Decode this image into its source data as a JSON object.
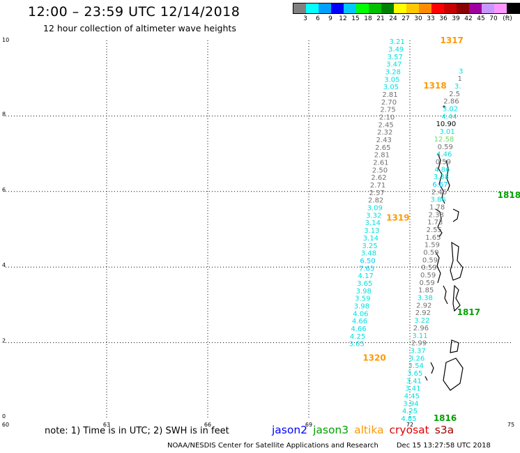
{
  "title": "12:00 – 23:59 UTC 12/14/2018",
  "subtitle": "12 hour collection of altimeter wave heights",
  "legend": {
    "colors": [
      "#808080",
      "#00ffff",
      "#00a0ff",
      "#0000ff",
      "#00c8ff",
      "#00ff00",
      "#00c000",
      "#008000",
      "#ffff00",
      "#ffc800",
      "#ff8c00",
      "#ff0000",
      "#c80000",
      "#8b0000",
      "#a000a0",
      "#c896ff",
      "#ff96ff",
      "#000000"
    ],
    "labels": [
      "3",
      "6",
      "9",
      "12",
      "15",
      "18",
      "21",
      "24",
      "27",
      "30",
      "33",
      "36",
      "39",
      "42",
      "45",
      "70",
      "(ft)"
    ]
  },
  "note": "note: 1) Time is in UTC; 2) SWH is in feet",
  "satellites": [
    {
      "name": "jason2",
      "color": "#0000ff"
    },
    {
      "name": "jason3",
      "color": "#00a000"
    },
    {
      "name": "altika",
      "color": "#ff9900"
    },
    {
      "name": "cryosat",
      "color": "#e00000"
    },
    {
      "name": "s3a",
      "color": "#a00000"
    }
  ],
  "footer": {
    "credit": "NOAA/NESDIS Center for Satellite Applications and Research",
    "timestamp": "Dec 15 13:27:58 UTC 2018"
  },
  "chart_data": {
    "type": "scatter",
    "xlim": [
      60,
      75
    ],
    "ylim": [
      0,
      10
    ],
    "x_ticks": [
      "60",
      "63",
      "66",
      "69",
      "72",
      "75"
    ],
    "y_ticks": [
      "0",
      "2",
      "4",
      "6",
      "8",
      "10"
    ],
    "grid": true,
    "times": [
      {
        "label": "1317",
        "x": 72.9,
        "y": 10.0,
        "color": "#ff9900"
      },
      {
        "label": "1318",
        "x": 72.4,
        "y": 8.8,
        "color": "#ff9900"
      },
      {
        "label": "1319",
        "x": 71.3,
        "y": 5.3,
        "color": "#ff9900"
      },
      {
        "label": "1320",
        "x": 70.6,
        "y": 1.6,
        "color": "#ff9900"
      },
      {
        "label": "1816",
        "x": 72.7,
        "y": 0.0,
        "color": "#00a000"
      },
      {
        "label": "1817",
        "x": 73.4,
        "y": 2.8,
        "color": "#00a000"
      },
      {
        "label": "1818",
        "x": 74.6,
        "y": 5.9,
        "color": "#00a000"
      }
    ],
    "series": [
      {
        "name": "altika",
        "points": [
          {
            "x": 71.85,
            "y": 9.98,
            "v": "3.21",
            "c": "#00e0e0"
          },
          {
            "x": 71.82,
            "y": 9.78,
            "v": "3.49",
            "c": "#00e0e0"
          },
          {
            "x": 71.79,
            "y": 9.58,
            "v": "3.57",
            "c": "#00e0e0"
          },
          {
            "x": 71.76,
            "y": 9.38,
            "v": "3.47",
            "c": "#00e0e0"
          },
          {
            "x": 71.73,
            "y": 9.18,
            "v": "3.28",
            "c": "#00e0e0"
          },
          {
            "x": 71.7,
            "y": 8.98,
            "v": "3.05",
            "c": "#00e0e0"
          },
          {
            "x": 71.67,
            "y": 8.78,
            "v": "3.05",
            "c": "#00e0e0"
          },
          {
            "x": 71.64,
            "y": 8.58,
            "v": "2.81",
            "c": "#707070"
          },
          {
            "x": 71.61,
            "y": 8.38,
            "v": "2.70",
            "c": "#707070"
          },
          {
            "x": 71.58,
            "y": 8.18,
            "v": "2.75",
            "c": "#707070"
          },
          {
            "x": 71.55,
            "y": 7.98,
            "v": "2.10",
            "c": "#707070"
          },
          {
            "x": 71.52,
            "y": 7.78,
            "v": "2.45",
            "c": "#707070"
          },
          {
            "x": 71.49,
            "y": 7.58,
            "v": "2.32",
            "c": "#707070"
          },
          {
            "x": 71.46,
            "y": 7.38,
            "v": "2.43",
            "c": "#707070"
          },
          {
            "x": 71.43,
            "y": 7.18,
            "v": "2.65",
            "c": "#707070"
          },
          {
            "x": 71.4,
            "y": 6.98,
            "v": "2.81",
            "c": "#707070"
          },
          {
            "x": 71.37,
            "y": 6.78,
            "v": "2.61",
            "c": "#707070"
          },
          {
            "x": 71.34,
            "y": 6.58,
            "v": "2.50",
            "c": "#707070"
          },
          {
            "x": 71.31,
            "y": 6.38,
            "v": "2.62",
            "c": "#707070"
          },
          {
            "x": 71.28,
            "y": 6.18,
            "v": "2.71",
            "c": "#707070"
          },
          {
            "x": 71.25,
            "y": 5.98,
            "v": "2.57",
            "c": "#707070"
          },
          {
            "x": 71.22,
            "y": 5.78,
            "v": "2.82",
            "c": "#707070"
          },
          {
            "x": 71.19,
            "y": 5.58,
            "v": "3.09",
            "c": "#00e0e0"
          },
          {
            "x": 71.16,
            "y": 5.38,
            "v": "3.32",
            "c": "#00e0e0"
          },
          {
            "x": 71.13,
            "y": 5.18,
            "v": "3.14",
            "c": "#00e0e0"
          },
          {
            "x": 71.1,
            "y": 4.98,
            "v": "3.13",
            "c": "#00e0e0"
          },
          {
            "x": 71.07,
            "y": 4.78,
            "v": "3.14",
            "c": "#00e0e0"
          },
          {
            "x": 71.04,
            "y": 4.58,
            "v": "3.25",
            "c": "#00e0e0"
          },
          {
            "x": 71.01,
            "y": 4.38,
            "v": "3.48",
            "c": "#00e0e0"
          },
          {
            "x": 70.98,
            "y": 4.18,
            "v": "6.50",
            "c": "#00c8ff"
          },
          {
            "x": 70.95,
            "y": 3.98,
            "v": "7.65",
            "c": "#00c8ff"
          },
          {
            "x": 70.92,
            "y": 3.78,
            "v": "4.17",
            "c": "#00e0e0"
          },
          {
            "x": 70.89,
            "y": 3.58,
            "v": "3.65",
            "c": "#00e0e0"
          },
          {
            "x": 70.86,
            "y": 3.38,
            "v": "3.98",
            "c": "#00e0e0"
          },
          {
            "x": 70.83,
            "y": 3.18,
            "v": "3.59",
            "c": "#00e0e0"
          },
          {
            "x": 70.8,
            "y": 2.98,
            "v": "3.98",
            "c": "#00e0e0"
          },
          {
            "x": 70.77,
            "y": 2.78,
            "v": "4.06",
            "c": "#00e0e0"
          },
          {
            "x": 70.74,
            "y": 2.58,
            "v": "4.66",
            "c": "#00e0e0"
          },
          {
            "x": 70.71,
            "y": 2.38,
            "v": "4.66",
            "c": "#00e0e0"
          },
          {
            "x": 70.68,
            "y": 2.18,
            "v": "4.25",
            "c": "#00e0e0"
          },
          {
            "x": 70.65,
            "y": 1.98,
            "v": "3.65",
            "c": "#00e0e0"
          }
        ]
      },
      {
        "name": "jason3",
        "points": [
          {
            "x": 72.2,
            "y": 0.0,
            "v": "4.85",
            "c": "#00e0e0"
          },
          {
            "x": 72.23,
            "y": 0.2,
            "v": "4.25",
            "c": "#00e0e0"
          },
          {
            "x": 72.26,
            "y": 0.4,
            "v": "3.94",
            "c": "#00e0e0"
          },
          {
            "x": 72.29,
            "y": 0.6,
            "v": "4.45",
            "c": "#00e0e0"
          },
          {
            "x": 72.32,
            "y": 0.8,
            "v": "3.41",
            "c": "#00e0e0"
          },
          {
            "x": 72.35,
            "y": 1.0,
            "v": "3.41",
            "c": "#00e0e0"
          },
          {
            "x": 72.38,
            "y": 1.2,
            "v": "3.65",
            "c": "#00e0e0"
          },
          {
            "x": 72.41,
            "y": 1.4,
            "v": "3.54",
            "c": "#00e0e0"
          },
          {
            "x": 72.44,
            "y": 1.6,
            "v": "3.26",
            "c": "#00e0e0"
          },
          {
            "x": 72.47,
            "y": 1.8,
            "v": "3.37",
            "c": "#00e0e0"
          },
          {
            "x": 72.5,
            "y": 2.0,
            "v": "2.99",
            "c": "#707070"
          },
          {
            "x": 72.53,
            "y": 2.2,
            "v": "3.11",
            "c": "#00e0e0"
          },
          {
            "x": 72.56,
            "y": 2.4,
            "v": "2.96",
            "c": "#707070"
          },
          {
            "x": 72.59,
            "y": 2.6,
            "v": "3.22",
            "c": "#00e0e0"
          },
          {
            "x": 72.62,
            "y": 2.8,
            "v": "2.92",
            "c": "#707070"
          },
          {
            "x": 72.65,
            "y": 3.0,
            "v": "2.92",
            "c": "#707070"
          },
          {
            "x": 72.68,
            "y": 3.2,
            "v": "3.38",
            "c": "#00e0e0"
          },
          {
            "x": 72.71,
            "y": 3.4,
            "v": "1.85",
            "c": "#707070"
          },
          {
            "x": 72.74,
            "y": 3.6,
            "v": "0.59",
            "c": "#707070"
          },
          {
            "x": 72.77,
            "y": 3.8,
            "v": "0.59",
            "c": "#707070"
          },
          {
            "x": 72.8,
            "y": 4.0,
            "v": "0.59",
            "c": "#707070"
          },
          {
            "x": 72.83,
            "y": 4.2,
            "v": "0.59",
            "c": "#707070"
          },
          {
            "x": 72.86,
            "y": 4.4,
            "v": "0.59",
            "c": "#707070"
          },
          {
            "x": 72.89,
            "y": 4.6,
            "v": "1.59",
            "c": "#707070"
          },
          {
            "x": 72.92,
            "y": 4.8,
            "v": "1.65",
            "c": "#707070"
          },
          {
            "x": 72.95,
            "y": 5.0,
            "v": "2.55",
            "c": "#707070"
          },
          {
            "x": 72.98,
            "y": 5.2,
            "v": "1.73",
            "c": "#707070"
          },
          {
            "x": 73.01,
            "y": 5.4,
            "v": "2.38",
            "c": "#707070"
          },
          {
            "x": 73.04,
            "y": 5.6,
            "v": "1.78",
            "c": "#707070"
          },
          {
            "x": 73.07,
            "y": 5.8,
            "v": "3.86",
            "c": "#00e0e0"
          },
          {
            "x": 73.1,
            "y": 6.0,
            "v": "2.46",
            "c": "#707070"
          },
          {
            "x": 73.13,
            "y": 6.2,
            "v": "6.67",
            "c": "#00c8ff"
          },
          {
            "x": 73.16,
            "y": 6.4,
            "v": "3.38",
            "c": "#00e0e0"
          },
          {
            "x": 73.19,
            "y": 6.6,
            "v": "4.86",
            "c": "#00e0e0"
          },
          {
            "x": 73.22,
            "y": 6.8,
            "v": "0.59",
            "c": "#707070"
          },
          {
            "x": 73.25,
            "y": 7.0,
            "v": "4.46",
            "c": "#00e0e0"
          },
          {
            "x": 73.28,
            "y": 7.2,
            "v": "0.59",
            "c": "#707070"
          },
          {
            "x": 73.31,
            "y": 7.4,
            "v": "12.58",
            "c": "#66dd66"
          },
          {
            "x": 73.34,
            "y": 7.6,
            "v": "3.01",
            "c": "#00e0e0"
          },
          {
            "x": 73.37,
            "y": 7.8,
            "v": "10.90",
            "c": "#000000"
          },
          {
            "x": 73.4,
            "y": 8.0,
            "v": "4.44",
            "c": "#00e0e0"
          },
          {
            "x": 73.43,
            "y": 8.2,
            "v": "3.02",
            "c": "#00e0e0"
          },
          {
            "x": 73.46,
            "y": 8.4,
            "v": "2.86",
            "c": "#707070"
          },
          {
            "x": 73.49,
            "y": 8.6,
            "v": "2.5",
            "c": "#707070"
          },
          {
            "x": 73.52,
            "y": 8.8,
            "v": "3.",
            "c": "#00e0e0"
          },
          {
            "x": 73.55,
            "y": 9.0,
            "v": "1",
            "c": "#707070"
          },
          {
            "x": 73.58,
            "y": 9.2,
            "v": "3",
            "c": "#00e0e0"
          }
        ]
      }
    ]
  }
}
